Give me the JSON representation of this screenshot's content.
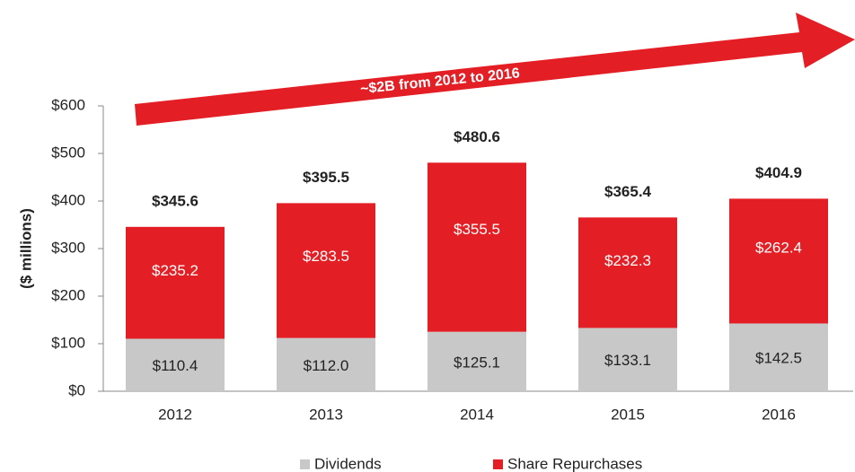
{
  "chart_data": {
    "type": "stacked_bar",
    "annotation": "~$2B from 2012 to 2016",
    "ylabel": "($ millions)",
    "categories": [
      "2012",
      "2013",
      "2014",
      "2015",
      "2016"
    ],
    "series": [
      {
        "name": "Dividends",
        "color": "#c8c8c8",
        "values": [
          110.4,
          112.0,
          125.1,
          133.1,
          142.5
        ],
        "value_labels": [
          "$110.4",
          "$112.0",
          "$125.1",
          "$133.1",
          "$142.5"
        ],
        "label_color": "#222"
      },
      {
        "name": "Share Repurchases",
        "color": "#e31e24",
        "values": [
          235.2,
          283.5,
          355.5,
          232.3,
          262.4
        ],
        "value_labels": [
          "$235.2",
          "$283.5",
          "$355.5",
          "$232.3",
          "$262.4"
        ],
        "label_color": "#ffffff"
      }
    ],
    "totals": [
      345.6,
      395.5,
      480.6,
      365.4,
      404.9
    ],
    "total_labels": [
      "$345.6",
      "$395.5",
      "$480.6",
      "$365.4",
      "$404.9"
    ],
    "ylim": [
      0,
      600
    ],
    "yticks": [
      {
        "value": 0,
        "label": "$0"
      },
      {
        "value": 100,
        "label": "$100"
      },
      {
        "value": 200,
        "label": "$200"
      },
      {
        "value": 300,
        "label": "$300"
      },
      {
        "value": 400,
        "label": "$400"
      },
      {
        "value": 500,
        "label": "$500"
      },
      {
        "value": 600,
        "label": "$600"
      }
    ],
    "grid": false
  }
}
